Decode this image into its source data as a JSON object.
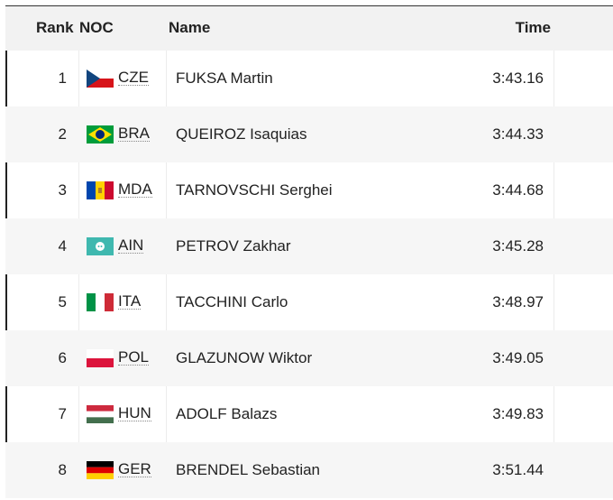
{
  "table": {
    "header": [
      "Rank",
      "NOC",
      "Name",
      "Time"
    ],
    "rows": [
      [
        1,
        "CZE",
        "FUKSA Martin",
        "3:43.16"
      ],
      [
        2,
        "BRA",
        "QUEIROZ Isaquias",
        "3:44.33"
      ],
      [
        3,
        "MDA",
        "TARNOVSCHI Serghei",
        "3:44.68"
      ],
      [
        4,
        "AIN",
        "PETROV Zakhar",
        "3:45.28"
      ],
      [
        5,
        "ITA",
        "TACCHINI Carlo",
        "3:48.97"
      ],
      [
        6,
        "POL",
        "GLAZUNOW Wiktor",
        "3:49.05"
      ],
      [
        7,
        "HUN",
        "ADOLF Balazs",
        "3:49.83"
      ],
      [
        8,
        "GER",
        "BRENDEL Sebastian",
        "3:51.44"
      ]
    ]
  }
}
